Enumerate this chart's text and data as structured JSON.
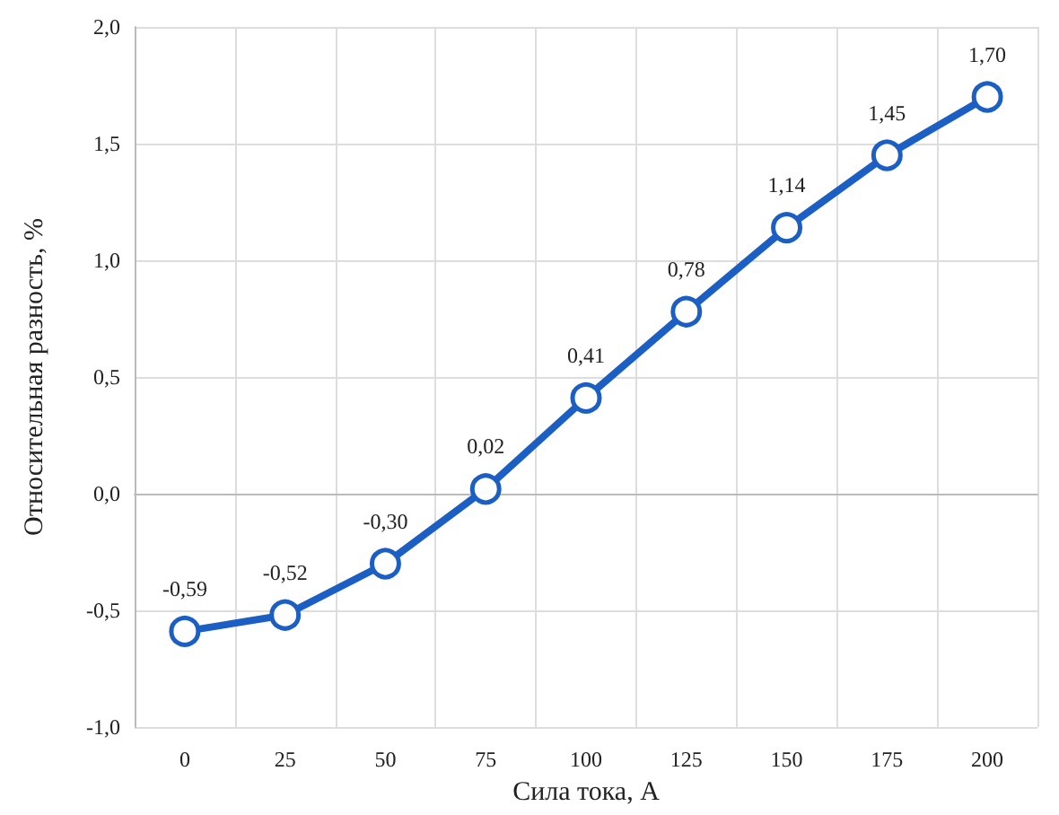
{
  "chart_data": {
    "type": "line",
    "xlabel": "Сила тока, А",
    "ylabel": "Относительная разность, %",
    "categories": [
      "0",
      "25",
      "50",
      "75",
      "100",
      "125",
      "150",
      "175",
      "200"
    ],
    "values": [
      -0.59,
      -0.52,
      -0.3,
      0.02,
      0.41,
      0.78,
      1.14,
      1.45,
      1.7
    ],
    "value_labels": [
      "-0,59",
      "-0,52",
      "-0,30",
      "0,02",
      "0,41",
      "0,78",
      "1,14",
      "1,45",
      "1,70"
    ],
    "color": "#1c5fc4",
    "marker": "circle",
    "line_style": "solid",
    "grid": true,
    "ylim": [
      -1.0,
      2.0
    ],
    "yticks": [
      {
        "value": -1.0,
        "label": "-1,0"
      },
      {
        "value": -0.5,
        "label": "-0,5"
      },
      {
        "value": 0.0,
        "label": "0,0"
      },
      {
        "value": 0.5,
        "label": "0,5"
      },
      {
        "value": 1.0,
        "label": "1,0"
      },
      {
        "value": 1.5,
        "label": "1,5"
      },
      {
        "value": 2.0,
        "label": "2,0"
      }
    ]
  }
}
